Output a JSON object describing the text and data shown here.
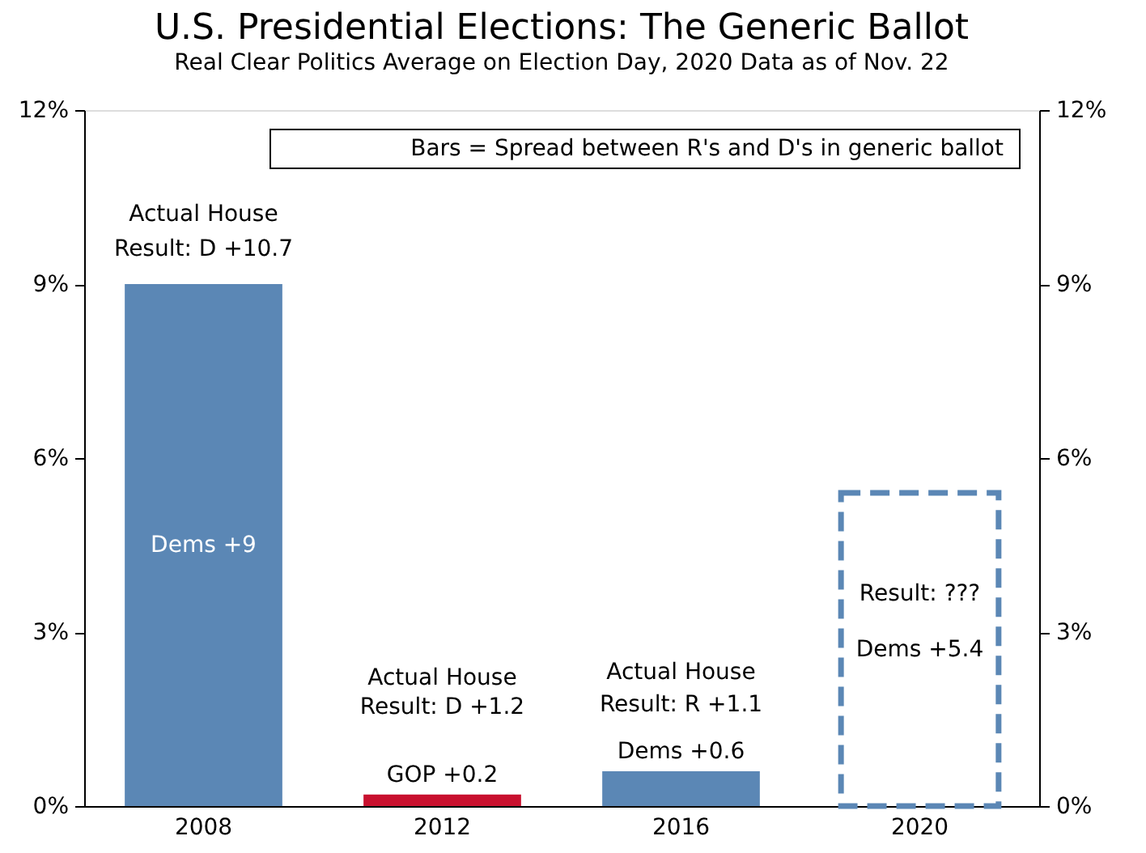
{
  "chart_data": {
    "type": "bar",
    "title": "U.S. Presidential Elections: The Generic Ballot",
    "subtitle": "Real Clear Politics Average on Election Day, 2020 Data as of Nov. 22",
    "categories": [
      "2008",
      "2012",
      "2016",
      "2020"
    ],
    "series": [
      {
        "colors": [
          "#5b87b5",
          "#c8102e",
          "#5b87b5",
          null
        ],
        "values": [
          9,
          0.2,
          0.6,
          null
        ],
        "value_labels": [
          "Dems +9",
          "GOP +0.2",
          "Dems +0.6",
          null
        ]
      },
      {
        "color": "#5b87b5",
        "line_style": "dashed",
        "values": [
          null,
          null,
          null,
          5.4
        ],
        "value_labels": [
          null,
          null,
          null,
          "Dems +5.4"
        ]
      }
    ],
    "ylim": [
      0,
      12
    ],
    "yticks": [
      {
        "value": 0,
        "label": "0%"
      },
      {
        "value": 3,
        "label": "3%"
      },
      {
        "value": 6,
        "label": "6%"
      },
      {
        "value": 9,
        "label": "9%"
      },
      {
        "value": 12,
        "label": "12%"
      }
    ],
    "y2lim": [
      0,
      12
    ],
    "y2ticks": [
      {
        "value": 0,
        "label": "0%"
      },
      {
        "value": 3,
        "label": "3%"
      },
      {
        "value": 6,
        "label": "6%"
      },
      {
        "value": 9,
        "label": "9%"
      },
      {
        "value": 12,
        "label": "12%"
      }
    ],
    "grid": false,
    "legend": false,
    "annotations": [
      "Bars = Spread between R's and D's in generic ballot",
      "Actual House",
      "Result: D +10.7",
      "Actual House",
      "Result: D +1.2",
      "Actual House",
      "Result: R +1.1",
      "Result: ???"
    ]
  }
}
